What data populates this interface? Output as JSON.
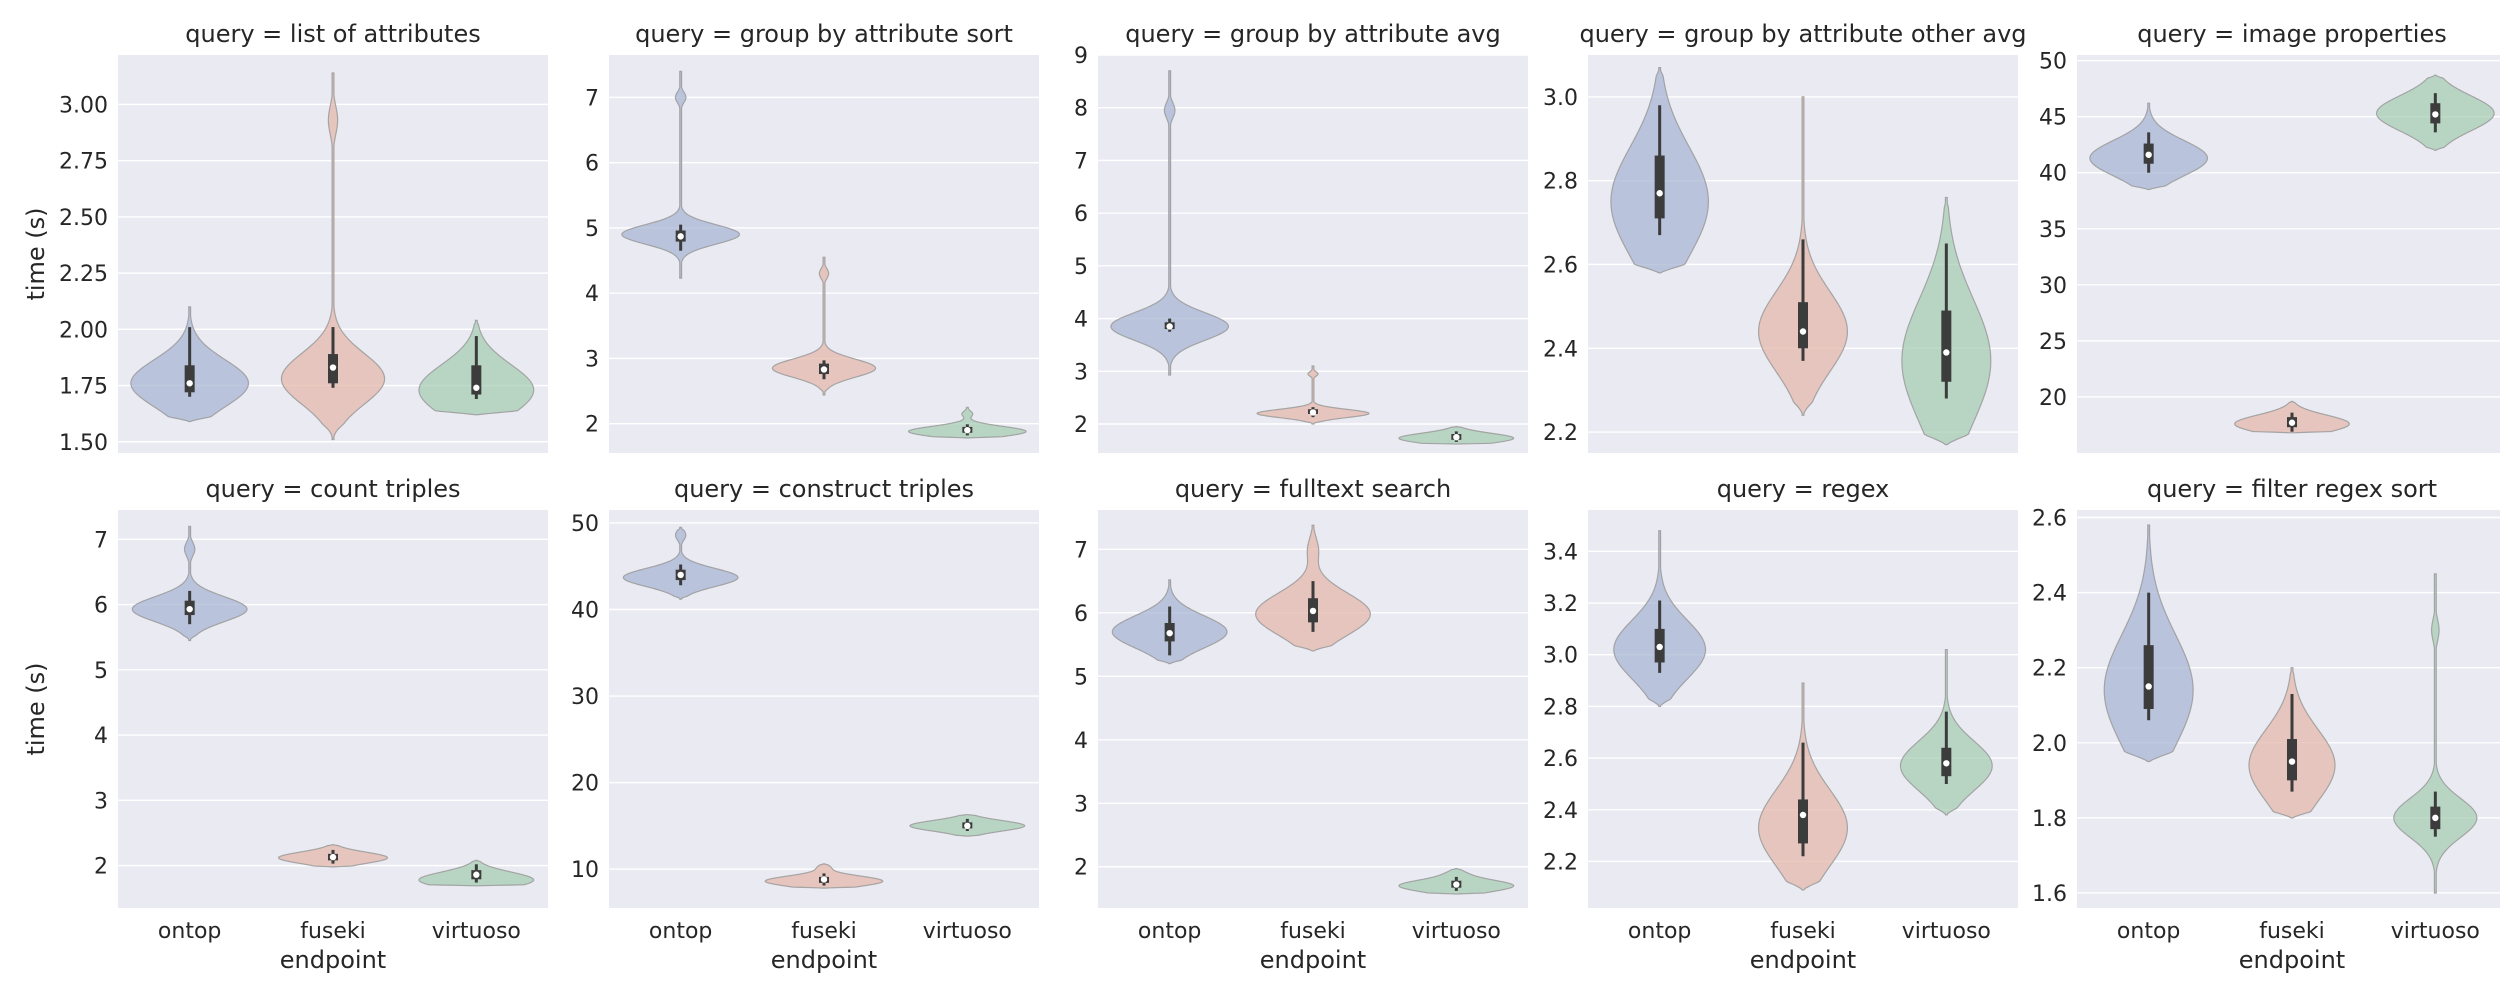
{
  "chart_data": {
    "type": "violin",
    "style": {
      "background": "#eaeaf2",
      "grid": true,
      "grid_color": "#ffffff"
    },
    "categories": [
      "ontop",
      "fuseki",
      "virtuoso"
    ],
    "colors": {
      "ontop": "#a6b4d1",
      "fuseki": "#e3b7a7",
      "virtuoso": "#a5cdb1"
    },
    "xlabel": "endpoint",
    "ylabel": "time (s)",
    "panels": [
      {
        "title": "query = list of attributes",
        "ylim": [
          1.45,
          3.22
        ],
        "yticks": [
          1.5,
          1.75,
          2.0,
          2.25,
          2.5,
          2.75,
          3.0
        ],
        "ytick_labels": [
          "1.50",
          "1.75",
          "2.00",
          "2.25",
          "2.50",
          "2.75",
          "3.00"
        ],
        "violins": [
          {
            "category": "ontop",
            "min": 1.7,
            "q1": 1.72,
            "median": 1.76,
            "q3": 1.84,
            "max": 2.01,
            "kde_low": 1.59,
            "kde_high": 2.1,
            "peak": 1.76,
            "width": 0.82,
            "tail_value": null
          },
          {
            "category": "fuseki",
            "min": 1.74,
            "q1": 1.76,
            "median": 1.83,
            "q3": 1.89,
            "max": 2.01,
            "kde_low": 1.51,
            "kde_high": 3.14,
            "peak": 1.78,
            "width": 0.72,
            "tail_value": 2.93
          },
          {
            "category": "virtuoso",
            "min": 1.69,
            "q1": 1.71,
            "median": 1.74,
            "q3": 1.84,
            "max": 1.97,
            "kde_low": 1.62,
            "kde_high": 2.04,
            "peak": 1.73,
            "width": 0.8,
            "tail_value": null
          }
        ]
      },
      {
        "title": "query = group by attribute sort",
        "ylim": [
          1.55,
          7.65
        ],
        "yticks": [
          2,
          3,
          4,
          5,
          6,
          7
        ],
        "ytick_labels": [
          "2",
          "3",
          "4",
          "5",
          "6",
          "7"
        ],
        "violins": [
          {
            "category": "ontop",
            "min": 4.65,
            "q1": 4.79,
            "median": 4.87,
            "q3": 4.96,
            "max": 5.05,
            "kde_low": 4.23,
            "kde_high": 7.4,
            "peak": 4.9,
            "width": 0.82,
            "tail_value": 7.0
          },
          {
            "category": "fuseki",
            "min": 2.68,
            "q1": 2.76,
            "median": 2.83,
            "q3": 2.92,
            "max": 2.97,
            "kde_low": 2.44,
            "kde_high": 4.55,
            "peak": 2.85,
            "width": 0.72,
            "tail_value": 4.3
          },
          {
            "category": "virtuoso",
            "min": 1.82,
            "q1": 1.86,
            "median": 1.9,
            "q3": 1.95,
            "max": 1.99,
            "kde_low": 1.78,
            "kde_high": 2.25,
            "peak": 1.88,
            "width": 0.82,
            "tail_value": 2.15
          }
        ]
      },
      {
        "title": "query = group by attribute avg",
        "ylim": [
          1.45,
          9.0
        ],
        "yticks": [
          2,
          3,
          4,
          5,
          6,
          7,
          8,
          9
        ],
        "ytick_labels": [
          "2",
          "3",
          "4",
          "5",
          "6",
          "7",
          "8",
          "9"
        ],
        "violins": [
          {
            "category": "ontop",
            "min": 3.75,
            "q1": 3.8,
            "median": 3.85,
            "q3": 3.93,
            "max": 4.0,
            "kde_low": 2.93,
            "kde_high": 8.7,
            "peak": 3.85,
            "width": 0.82,
            "tail_value": 7.95
          },
          {
            "category": "fuseki",
            "min": 2.13,
            "q1": 2.19,
            "median": 2.22,
            "q3": 2.28,
            "max": 2.32,
            "kde_low": 2.0,
            "kde_high": 3.1,
            "peak": 2.2,
            "width": 0.78,
            "tail_value": 2.95
          },
          {
            "category": "virtuoso",
            "min": 1.66,
            "q1": 1.7,
            "median": 1.75,
            "q3": 1.81,
            "max": 1.86,
            "kde_low": 1.62,
            "kde_high": 1.95,
            "peak": 1.73,
            "width": 0.8,
            "tail_value": null
          }
        ]
      },
      {
        "title": "query = group by attribute other avg",
        "ylim": [
          2.15,
          3.1
        ],
        "yticks": [
          2.2,
          2.4,
          2.6,
          2.8,
          3.0
        ],
        "ytick_labels": [
          "2.2",
          "2.4",
          "2.6",
          "2.8",
          "3.0"
        ],
        "violins": [
          {
            "category": "ontop",
            "min": 2.67,
            "q1": 2.71,
            "median": 2.77,
            "q3": 2.86,
            "max": 2.98,
            "kde_low": 2.58,
            "kde_high": 3.07,
            "peak": 2.75,
            "width": 0.68,
            "tail_value": null
          },
          {
            "category": "fuseki",
            "min": 2.37,
            "q1": 2.4,
            "median": 2.44,
            "q3": 2.51,
            "max": 2.66,
            "kde_low": 2.24,
            "kde_high": 3.0,
            "peak": 2.44,
            "width": 0.62,
            "tail_value": null
          },
          {
            "category": "virtuoso",
            "min": 2.28,
            "q1": 2.32,
            "median": 2.39,
            "q3": 2.49,
            "max": 2.65,
            "kde_low": 2.17,
            "kde_high": 2.76,
            "peak": 2.37,
            "width": 0.62,
            "tail_value": null
          }
        ]
      },
      {
        "title": "query = image properties",
        "ylim": [
          15.0,
          50.5
        ],
        "yticks": [
          20,
          25,
          30,
          35,
          40,
          45,
          50
        ],
        "ytick_labels": [
          "20",
          "25",
          "30",
          "35",
          "40",
          "45",
          "50"
        ],
        "violins": [
          {
            "category": "ontop",
            "min": 40.0,
            "q1": 40.8,
            "median": 41.6,
            "q3": 42.6,
            "max": 43.6,
            "kde_low": 38.5,
            "kde_high": 46.2,
            "peak": 41.3,
            "width": 0.82,
            "tail_value": null
          },
          {
            "category": "fuseki",
            "min": 16.9,
            "q1": 17.3,
            "median": 17.7,
            "q3": 18.2,
            "max": 18.6,
            "kde_low": 16.8,
            "kde_high": 19.6,
            "peak": 17.6,
            "width": 0.8,
            "tail_value": null
          },
          {
            "category": "virtuoso",
            "min": 43.6,
            "q1": 44.4,
            "median": 45.2,
            "q3": 46.2,
            "max": 47.1,
            "kde_low": 42.0,
            "kde_high": 48.7,
            "peak": 45.3,
            "width": 0.82,
            "tail_value": null
          }
        ]
      },
      {
        "title": "query = count triples",
        "ylim": [
          1.35,
          7.45
        ],
        "yticks": [
          2,
          3,
          4,
          5,
          6,
          7
        ],
        "ytick_labels": [
          "2",
          "3",
          "4",
          "5",
          "6",
          "7"
        ],
        "violins": [
          {
            "category": "ontop",
            "min": 5.7,
            "q1": 5.84,
            "median": 5.93,
            "q3": 6.06,
            "max": 6.21,
            "kde_low": 5.45,
            "kde_high": 7.2,
            "peak": 5.93,
            "width": 0.8,
            "tail_value": 6.85
          },
          {
            "category": "fuseki",
            "min": 2.03,
            "q1": 2.08,
            "median": 2.13,
            "q3": 2.18,
            "max": 2.24,
            "kde_low": 1.98,
            "kde_high": 2.32,
            "peak": 2.12,
            "width": 0.76,
            "tail_value": null
          },
          {
            "category": "virtuoso",
            "min": 1.74,
            "q1": 1.79,
            "median": 1.86,
            "q3": 1.93,
            "max": 2.02,
            "kde_low": 1.69,
            "kde_high": 2.08,
            "peak": 1.78,
            "width": 0.8,
            "tail_value": null
          }
        ]
      },
      {
        "title": "query = construct triples",
        "ylim": [
          5.5,
          51.5
        ],
        "yticks": [
          10,
          20,
          30,
          40,
          50
        ],
        "ytick_labels": [
          "10",
          "20",
          "30",
          "40",
          "50"
        ],
        "violins": [
          {
            "category": "ontop",
            "min": 42.8,
            "q1": 43.4,
            "median": 44.0,
            "q3": 44.6,
            "max": 45.2,
            "kde_low": 41.2,
            "kde_high": 49.5,
            "peak": 43.7,
            "width": 0.8,
            "tail_value": 48.6
          },
          {
            "category": "fuseki",
            "min": 8.1,
            "q1": 8.4,
            "median": 8.8,
            "q3": 9.1,
            "max": 9.5,
            "kde_low": 7.8,
            "kde_high": 10.6,
            "peak": 8.6,
            "width": 0.82,
            "tail_value": 10.2
          },
          {
            "category": "virtuoso",
            "min": 14.4,
            "q1": 14.7,
            "median": 15.0,
            "q3": 15.4,
            "max": 15.8,
            "kde_low": 13.8,
            "kde_high": 16.3,
            "peak": 15.0,
            "width": 0.8,
            "tail_value": null
          }
        ]
      },
      {
        "title": "query = fulltext search",
        "ylim": [
          1.35,
          7.62
        ],
        "yticks": [
          2,
          3,
          4,
          5,
          6,
          7
        ],
        "ytick_labels": [
          "2",
          "3",
          "4",
          "5",
          "6",
          "7"
        ],
        "violins": [
          {
            "category": "ontop",
            "min": 5.33,
            "q1": 5.55,
            "median": 5.68,
            "q3": 5.84,
            "max": 6.1,
            "kde_low": 5.2,
            "kde_high": 6.52,
            "peak": 5.7,
            "width": 0.8,
            "tail_value": null
          },
          {
            "category": "fuseki",
            "min": 5.7,
            "q1": 5.85,
            "median": 6.03,
            "q3": 6.23,
            "max": 6.5,
            "kde_low": 5.4,
            "kde_high": 7.38,
            "peak": 5.98,
            "width": 0.8,
            "tail_value": 7.0
          },
          {
            "category": "virtuoso",
            "min": 1.62,
            "q1": 1.67,
            "median": 1.72,
            "q3": 1.78,
            "max": 1.84,
            "kde_low": 1.57,
            "kde_high": 1.97,
            "peak": 1.7,
            "width": 0.8,
            "tail_value": 1.9
          }
        ]
      },
      {
        "title": "query = regex",
        "ylim": [
          2.02,
          3.56
        ],
        "yticks": [
          2.2,
          2.4,
          2.6,
          2.8,
          3.0,
          3.2,
          3.4
        ],
        "ytick_labels": [
          "2.2",
          "2.4",
          "2.6",
          "2.8",
          "3.0",
          "3.2",
          "3.4"
        ],
        "violins": [
          {
            "category": "ontop",
            "min": 2.93,
            "q1": 2.97,
            "median": 3.03,
            "q3": 3.1,
            "max": 3.21,
            "kde_low": 2.8,
            "kde_high": 3.48,
            "peak": 3.02,
            "width": 0.64,
            "tail_value": null
          },
          {
            "category": "fuseki",
            "min": 2.22,
            "q1": 2.27,
            "median": 2.38,
            "q3": 2.44,
            "max": 2.66,
            "kde_low": 2.09,
            "kde_high": 2.89,
            "peak": 2.33,
            "width": 0.62,
            "tail_value": null
          },
          {
            "category": "virtuoso",
            "min": 2.5,
            "q1": 2.53,
            "median": 2.58,
            "q3": 2.64,
            "max": 2.78,
            "kde_low": 2.38,
            "kde_high": 3.02,
            "peak": 2.57,
            "width": 0.64,
            "tail_value": null
          }
        ]
      },
      {
        "title": "query = filter regex sort",
        "ylim": [
          1.56,
          2.62
        ],
        "yticks": [
          1.6,
          1.8,
          2.0,
          2.2,
          2.4,
          2.6
        ],
        "ytick_labels": [
          "1.6",
          "1.8",
          "2.0",
          "2.2",
          "2.4",
          "2.6"
        ],
        "violins": [
          {
            "category": "ontop",
            "min": 2.06,
            "q1": 2.09,
            "median": 2.15,
            "q3": 2.26,
            "max": 2.4,
            "kde_low": 1.95,
            "kde_high": 2.58,
            "peak": 2.14,
            "width": 0.62,
            "tail_value": null
          },
          {
            "category": "fuseki",
            "min": 1.87,
            "q1": 1.9,
            "median": 1.95,
            "q3": 2.01,
            "max": 2.13,
            "kde_low": 1.8,
            "kde_high": 2.2,
            "peak": 1.94,
            "width": 0.6,
            "tail_value": null
          },
          {
            "category": "virtuoso",
            "min": 1.75,
            "q1": 1.77,
            "median": 1.8,
            "q3": 1.83,
            "max": 1.87,
            "kde_low": 1.6,
            "kde_high": 2.45,
            "peak": 1.8,
            "width": 0.58,
            "tail_value": 2.3
          }
        ]
      }
    ]
  }
}
